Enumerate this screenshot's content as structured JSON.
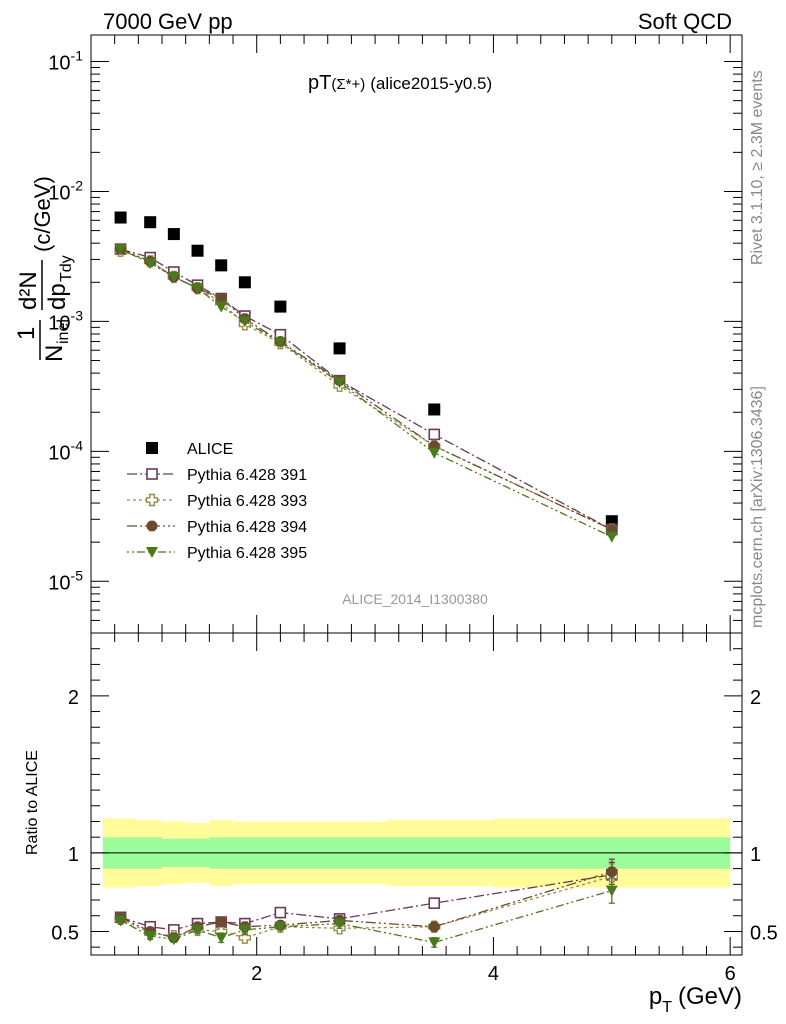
{
  "header": {
    "left": "7000 GeV pp",
    "right": "Soft QCD"
  },
  "side": {
    "rivet": "Rivet 3.1.10, ≥ 2.3M events",
    "mcplots": "mcplots.cern.ch [arXiv:1306.3436]"
  },
  "watermark": "ALICE_2014_I1300380",
  "main_title": {
    "prefix": "pT",
    "particle": "(Σ*+)",
    "suffix": "(alice2015-y0.5)"
  },
  "chart_data": {
    "type": "scatter",
    "x": [
      0.85,
      1.1,
      1.3,
      1.5,
      1.7,
      1.9,
      2.2,
      2.7,
      3.5,
      5.0
    ],
    "xlabel": "p_T (GeV)",
    "xlim": [
      0.6,
      6.1
    ],
    "xticks": [
      "2",
      "4",
      "6"
    ],
    "main": {
      "ylabel": "1/N_inel d²N/dp_T dy (c/GeV)",
      "yscale": "log",
      "ylim": [
        4e-06,
        0.16
      ],
      "yticks": [
        "10^-5",
        "10^-4",
        "10^-3",
        "10^-2",
        "10^-1"
      ],
      "series": [
        {
          "name": "ALICE",
          "color": "#000000",
          "marker": "square-filled",
          "values": [
            0.0063,
            0.0058,
            0.0047,
            0.0035,
            0.0027,
            0.002,
            0.0013,
            0.00062,
            0.00021,
            2.9e-05
          ]
        },
        {
          "name": "Pythia 6.428 391",
          "color": "#6b3a56",
          "marker": "square-open",
          "dash": "10,3,2,3",
          "values": [
            0.0036,
            0.0031,
            0.0024,
            0.0019,
            0.0015,
            0.0011,
            0.00079,
            0.00035,
            0.000135,
            2.5e-05
          ]
        },
        {
          "name": "Pythia 6.428 393",
          "color": "#9a8b4a",
          "marker": "cross-open",
          "dash": "3,3",
          "values": [
            0.0035,
            0.0029,
            0.0022,
            0.0018,
            0.0014,
            0.00095,
            0.00068,
            0.00032,
            0.00011,
            2.5e-05
          ]
        },
        {
          "name": "Pythia 6.428 394",
          "color": "#6b4a30",
          "marker": "circle-filled",
          "dash": "10,3,2,3,2,3",
          "values": [
            0.0036,
            0.0029,
            0.0022,
            0.0018,
            0.0015,
            0.00105,
            0.0007,
            0.00035,
            0.00011,
            2.5e-05
          ]
        },
        {
          "name": "Pythia 6.428 395",
          "color": "#4a7a1e",
          "marker": "triangle-down-filled",
          "dash": "2,3,2,3,8,3",
          "values": [
            0.0036,
            0.0028,
            0.0022,
            0.0018,
            0.0013,
            0.001,
            0.00069,
            0.00034,
            9.75e-05,
            2.2e-05
          ]
        }
      ]
    },
    "ratio": {
      "ylabel": "Ratio to ALICE",
      "ylim": [
        0.35,
        2.4
      ],
      "yticks": [
        "0.5",
        "1",
        "2"
      ],
      "band_x": [
        0.7,
        0.975,
        1.2,
        1.4,
        1.6,
        1.8,
        2.0,
        2.45,
        3.1,
        4.0,
        6.0
      ],
      "band_outer": [
        [
          0.78,
          1.22
        ],
        [
          0.79,
          1.21
        ],
        [
          0.8,
          1.2
        ],
        [
          0.81,
          1.19
        ],
        [
          0.79,
          1.21
        ],
        [
          0.8,
          1.2
        ],
        [
          0.8,
          1.2
        ],
        [
          0.8,
          1.2
        ],
        [
          0.79,
          1.21
        ],
        [
          0.78,
          1.22
        ]
      ],
      "band_inner": [
        [
          0.9,
          1.1
        ],
        [
          0.9,
          1.1
        ],
        [
          0.91,
          1.09
        ],
        [
          0.91,
          1.09
        ],
        [
          0.9,
          1.1
        ],
        [
          0.9,
          1.1
        ],
        [
          0.9,
          1.1
        ],
        [
          0.9,
          1.1
        ],
        [
          0.9,
          1.1
        ],
        [
          0.9,
          1.1
        ]
      ],
      "series": [
        {
          "name": "Pythia 6.428 391",
          "values": [
            0.59,
            0.53,
            0.51,
            0.55,
            0.56,
            0.55,
            0.62,
            0.58,
            0.68,
            0.86
          ],
          "err": [
            0.02,
            0.02,
            0.02,
            0.02,
            0.02,
            0.02,
            0.02,
            0.03,
            0.03,
            0.08
          ]
        },
        {
          "name": "Pythia 6.428 393",
          "values": [
            0.58,
            0.49,
            0.47,
            0.51,
            0.5,
            0.46,
            0.53,
            0.52,
            0.53,
            0.85
          ],
          "err": [
            0.02,
            0.02,
            0.02,
            0.02,
            0.02,
            0.03,
            0.02,
            0.03,
            0.03,
            0.08
          ]
        },
        {
          "name": "Pythia 6.428 394",
          "values": [
            0.59,
            0.5,
            0.46,
            0.53,
            0.56,
            0.53,
            0.54,
            0.57,
            0.53,
            0.88
          ],
          "err": [
            0.02,
            0.02,
            0.02,
            0.02,
            0.02,
            0.03,
            0.02,
            0.03,
            0.03,
            0.08
          ]
        },
        {
          "name": "Pythia 6.428 395",
          "values": [
            0.57,
            0.47,
            0.45,
            0.51,
            0.46,
            0.51,
            0.53,
            0.55,
            0.43,
            0.76
          ],
          "err": [
            0.02,
            0.02,
            0.02,
            0.02,
            0.03,
            0.03,
            0.02,
            0.03,
            0.03,
            0.08
          ]
        }
      ]
    }
  }
}
